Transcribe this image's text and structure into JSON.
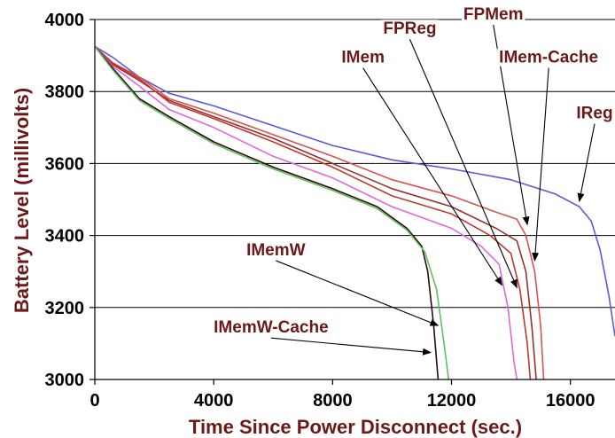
{
  "chart_data": {
    "type": "line",
    "title": "",
    "xlabel": "Time Since Power Disconnect (sec.)",
    "ylabel": "Battery Level (millivolts)",
    "xlim": [
      0,
      17500
    ],
    "ylim": [
      3000,
      4000
    ],
    "xticks": [
      0,
      4000,
      8000,
      12000,
      16000
    ],
    "yticks": [
      3000,
      3200,
      3400,
      3600,
      3800,
      4000
    ],
    "grid": "horizontal",
    "colors": {
      "arrow": "#000000",
      "label_text": "#6b1a17",
      "axis": "#000000"
    },
    "series": [
      {
        "name": "IReg",
        "color": "#5b5bd6",
        "points": [
          [
            0,
            3925
          ],
          [
            600,
            3895
          ],
          [
            1500,
            3840
          ],
          [
            2500,
            3795
          ],
          [
            4000,
            3760
          ],
          [
            6000,
            3705
          ],
          [
            8000,
            3650
          ],
          [
            10000,
            3610
          ],
          [
            12000,
            3585
          ],
          [
            14000,
            3555
          ],
          [
            15500,
            3515
          ],
          [
            16300,
            3480
          ],
          [
            16700,
            3440
          ],
          [
            17000,
            3360
          ],
          [
            17300,
            3230
          ],
          [
            17500,
            3120
          ]
        ]
      },
      {
        "name": "IMem-Cache",
        "color": "#d9534f",
        "points": [
          [
            0,
            3925
          ],
          [
            600,
            3880
          ],
          [
            1500,
            3840
          ],
          [
            2500,
            3780
          ],
          [
            4000,
            3740
          ],
          [
            6000,
            3680
          ],
          [
            8000,
            3620
          ],
          [
            10000,
            3555
          ],
          [
            12000,
            3510
          ],
          [
            13500,
            3465
          ],
          [
            14200,
            3445
          ],
          [
            14500,
            3400
          ],
          [
            14800,
            3300
          ],
          [
            15000,
            3150
          ],
          [
            15100,
            3000
          ]
        ]
      },
      {
        "name": "FPMem",
        "color": "#9b2f2f",
        "points": [
          [
            0,
            3925
          ],
          [
            600,
            3875
          ],
          [
            1500,
            3830
          ],
          [
            2500,
            3775
          ],
          [
            4000,
            3730
          ],
          [
            6000,
            3670
          ],
          [
            8000,
            3600
          ],
          [
            10000,
            3530
          ],
          [
            12000,
            3480
          ],
          [
            13500,
            3420
          ],
          [
            14200,
            3385
          ],
          [
            14500,
            3300
          ],
          [
            14700,
            3150
          ],
          [
            14850,
            3000
          ]
        ]
      },
      {
        "name": "FPReg",
        "color": "#c0392b",
        "points": [
          [
            0,
            3925
          ],
          [
            600,
            3878
          ],
          [
            1500,
            3835
          ],
          [
            2500,
            3770
          ],
          [
            4000,
            3725
          ],
          [
            6000,
            3660
          ],
          [
            8000,
            3590
          ],
          [
            10000,
            3510
          ],
          [
            12000,
            3460
          ],
          [
            13300,
            3400
          ],
          [
            14000,
            3350
          ],
          [
            14300,
            3250
          ],
          [
            14550,
            3100
          ],
          [
            14650,
            3000
          ]
        ]
      },
      {
        "name": "IMem",
        "color": "#e066e0",
        "points": [
          [
            0,
            3925
          ],
          [
            600,
            3870
          ],
          [
            1500,
            3815
          ],
          [
            2500,
            3750
          ],
          [
            4000,
            3700
          ],
          [
            6000,
            3620
          ],
          [
            8000,
            3560
          ],
          [
            10000,
            3480
          ],
          [
            12000,
            3420
          ],
          [
            13000,
            3370
          ],
          [
            13600,
            3320
          ],
          [
            13900,
            3200
          ],
          [
            14100,
            3050
          ],
          [
            14200,
            3000
          ]
        ]
      },
      {
        "name": "IMemW-Cache",
        "color": "#2b0a0a",
        "points": [
          [
            0,
            3925
          ],
          [
            600,
            3865
          ],
          [
            1500,
            3780
          ],
          [
            2500,
            3730
          ],
          [
            4000,
            3660
          ],
          [
            6000,
            3590
          ],
          [
            8000,
            3530
          ],
          [
            9500,
            3480
          ],
          [
            10500,
            3420
          ],
          [
            11000,
            3370
          ],
          [
            11200,
            3300
          ],
          [
            11400,
            3150
          ],
          [
            11550,
            3000
          ]
        ]
      },
      {
        "name": "IMemW",
        "color": "#5fbf5f",
        "points": [
          [
            0,
            3925
          ],
          [
            600,
            3860
          ],
          [
            1500,
            3775
          ],
          [
            2500,
            3725
          ],
          [
            4000,
            3655
          ],
          [
            6000,
            3585
          ],
          [
            8000,
            3525
          ],
          [
            9500,
            3475
          ],
          [
            10500,
            3415
          ],
          [
            11100,
            3355
          ],
          [
            11500,
            3250
          ],
          [
            11750,
            3100
          ],
          [
            11900,
            3000
          ]
        ]
      }
    ],
    "annotations": [
      {
        "text": "FPMem",
        "text_x": 12400,
        "text_y": 4000,
        "target_x": 14550,
        "target_y": 3430
      },
      {
        "text": "FPReg",
        "text_x": 9700,
        "text_y": 3960,
        "target_x": 14200,
        "target_y": 3255
      },
      {
        "text": "IMem",
        "text_x": 8300,
        "text_y": 3880,
        "target_x": 13700,
        "target_y": 3262
      },
      {
        "text": "IMem-Cache",
        "text_x": 13600,
        "text_y": 3880,
        "target_x": 14800,
        "target_y": 3330
      },
      {
        "text": "IReg",
        "text_x": 16200,
        "text_y": 3725,
        "target_x": 16300,
        "target_y": 3495
      },
      {
        "text": "IMemW",
        "text_x": 5100,
        "text_y": 3345,
        "target_x": 11550,
        "target_y": 3150
      },
      {
        "text": "IMemW-Cache",
        "text_x": 4000,
        "text_y": 3130,
        "target_x": 11300,
        "target_y": 3075
      }
    ]
  }
}
